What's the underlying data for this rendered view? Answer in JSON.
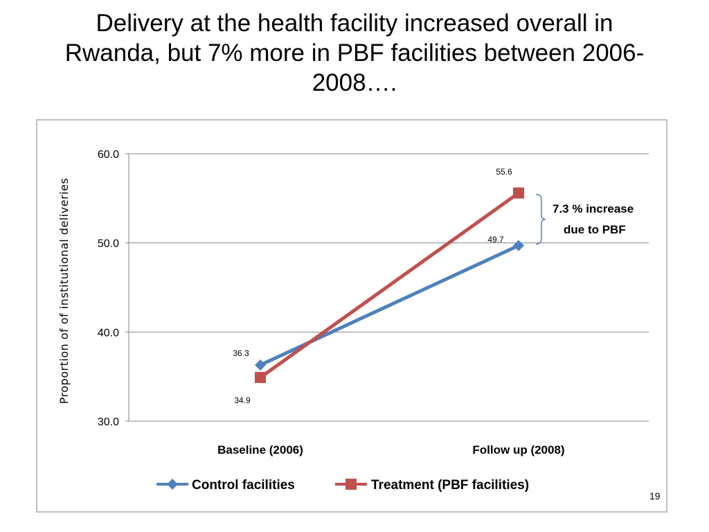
{
  "slide": {
    "title_lines": [
      "Delivery at the health facility increased overall in",
      "Rwanda, but 7% more in PBF facilities between 2006-",
      "2008…."
    ],
    "page_number": "19"
  },
  "chart_data": {
    "type": "line",
    "title": "",
    "xlabel": "",
    "ylabel": "Proportion of of institutional  deliveries",
    "categories": [
      "Baseline  (2006)",
      "Follow up (2008)"
    ],
    "ylim": [
      30,
      60
    ],
    "yticks": [
      30,
      40,
      50,
      60
    ],
    "ytick_labels": [
      "30.0",
      "40.0",
      "50.0",
      "60.0"
    ],
    "grid": true,
    "legend_position": "bottom",
    "series": [
      {
        "name": "Control facilities",
        "values": [
          36.3,
          49.7
        ],
        "labels": [
          "36.3",
          "49.7"
        ],
        "color": "#4f81bd",
        "marker": "diamond"
      },
      {
        "name": "Treatment (PBF facilities)",
        "values": [
          34.9,
          55.6
        ],
        "labels": [
          "34.9",
          "55.6"
        ],
        "color": "#c0504d",
        "marker": "square"
      }
    ],
    "annotation": {
      "lines": [
        "7.3 % increase",
        "due to PBF"
      ],
      "bracket_color": "#4f81bd"
    }
  }
}
